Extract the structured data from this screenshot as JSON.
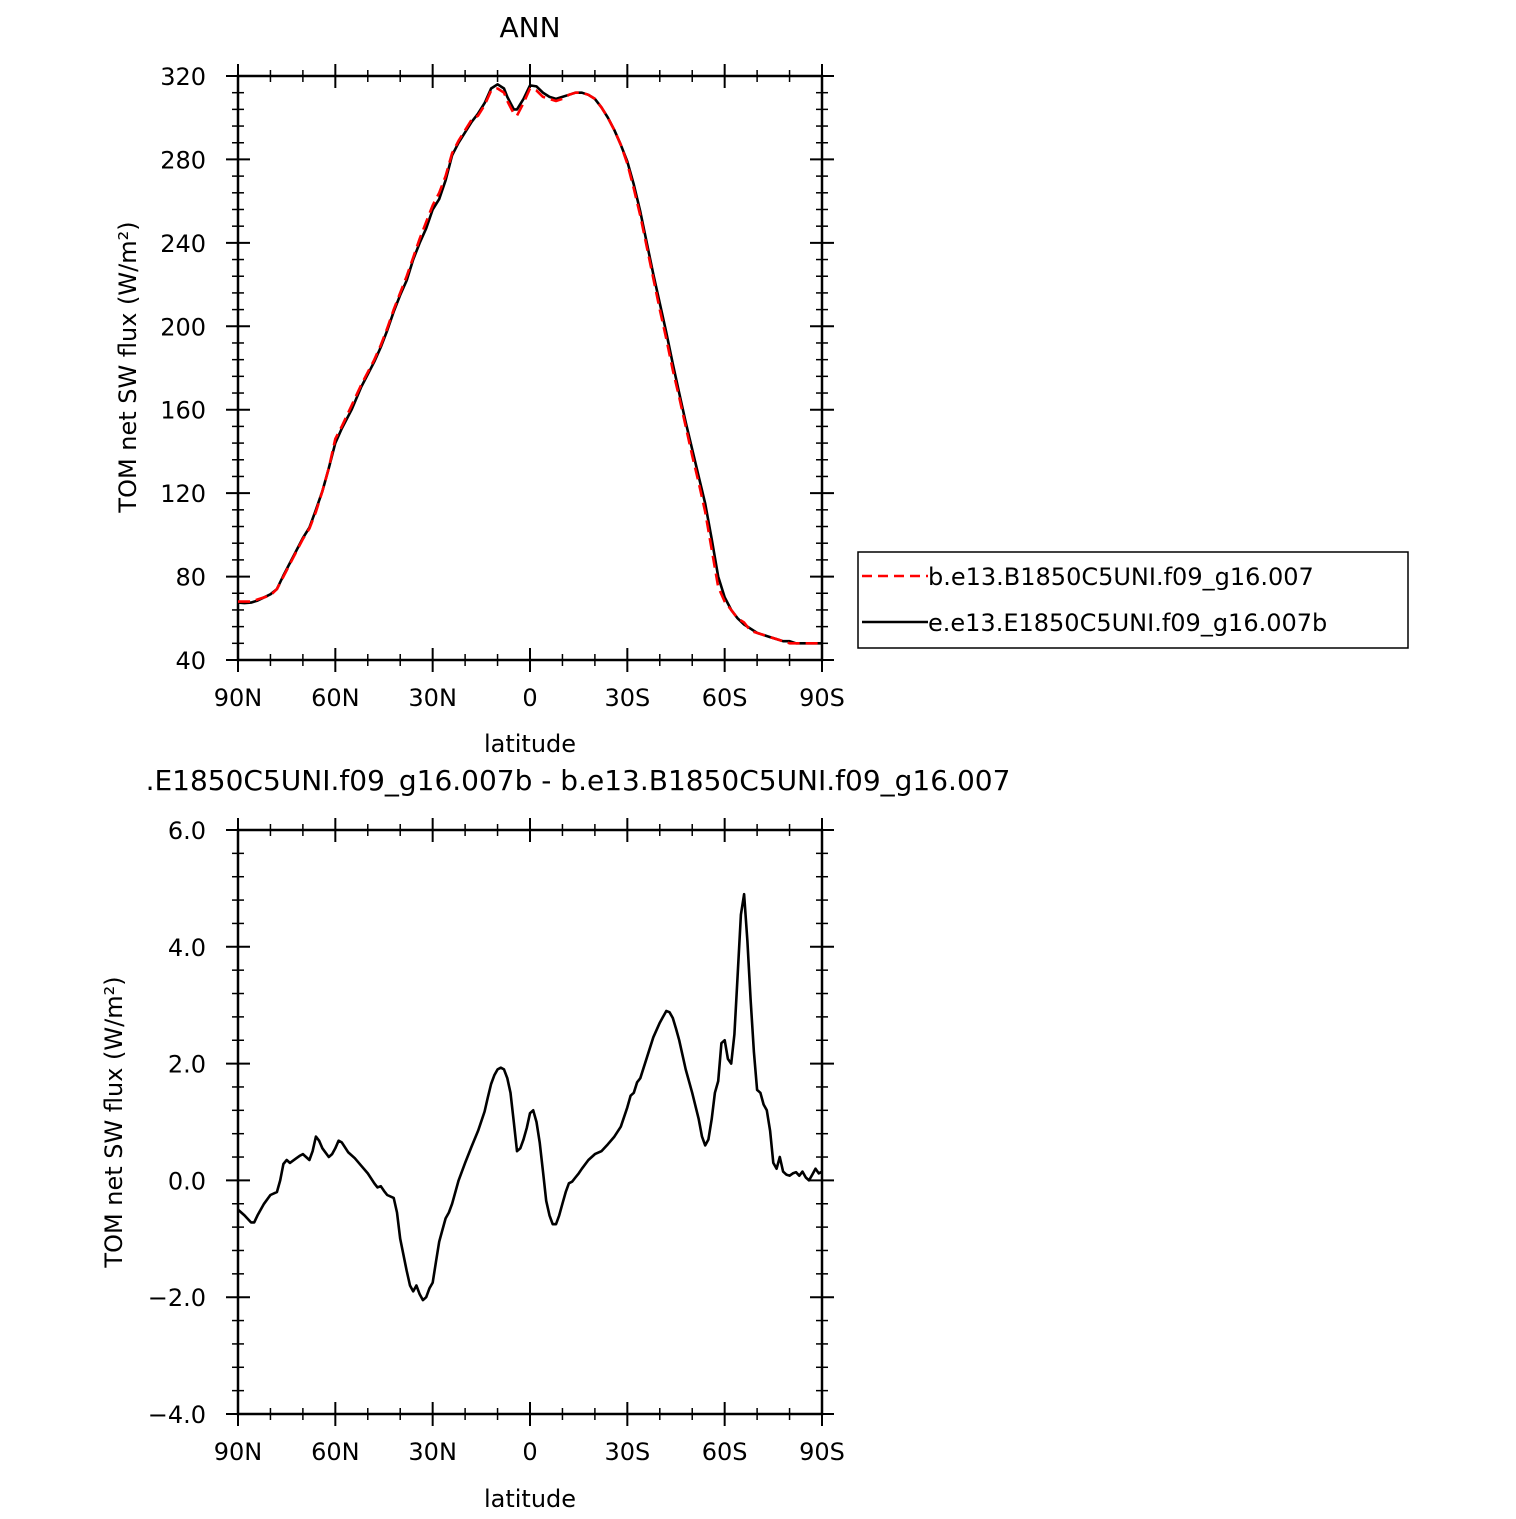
{
  "chart_data": [
    {
      "type": "line",
      "title": "ANN",
      "xlabel": "latitude",
      "ylabel": "TOM net SW flux (W/m²)",
      "xlim": [
        90,
        -90
      ],
      "ylim": [
        40,
        320
      ],
      "yticks": [
        "40",
        "80",
        "120",
        "160",
        "200",
        "240",
        "280",
        "320"
      ],
      "xticks": [
        "90N",
        "60N",
        "30N",
        "0",
        "30S",
        "60S",
        "90S"
      ],
      "legend_position": "right",
      "series": [
        {
          "name": "b.e13.B1850C5UNI.f09_g16.007",
          "color": "#ff0000",
          "dash": "dashed",
          "x": [
            90,
            88,
            86,
            84,
            82,
            80,
            78,
            76,
            74,
            72,
            70,
            68,
            66,
            64,
            62,
            60,
            58,
            55,
            52,
            50,
            48,
            46,
            44,
            42,
            40,
            38,
            36,
            34,
            32,
            30,
            28,
            26,
            24,
            22,
            20,
            18,
            16,
            14,
            12,
            10,
            8,
            7,
            6,
            5,
            4,
            2,
            0,
            -2,
            -4,
            -6,
            -8,
            -10,
            -12,
            -14,
            -16,
            -18,
            -20,
            -22,
            -24,
            -26,
            -28,
            -30,
            -32,
            -34,
            -36,
            -38,
            -40,
            -42,
            -44,
            -46,
            -48,
            -50,
            -52,
            -54,
            -56,
            -58,
            -60,
            -62,
            -64,
            -66,
            -68,
            -70,
            -72,
            -74,
            -76,
            -78,
            -80,
            -82,
            -84,
            -86,
            -88,
            -90
          ],
          "y": [
            68,
            68,
            68,
            69,
            70,
            71,
            74,
            80,
            86,
            92,
            98,
            103,
            111,
            121,
            132,
            146,
            152,
            162,
            172,
            178,
            184,
            191,
            199,
            208,
            216,
            224,
            233,
            242,
            250,
            258,
            264,
            272,
            283,
            289,
            294,
            299,
            301,
            306,
            313,
            314,
            312,
            308,
            305,
            302,
            301,
            307,
            314,
            313,
            310,
            309,
            308,
            309,
            311,
            312,
            312,
            311,
            309,
            305,
            300,
            294,
            287,
            278,
            266,
            253,
            238,
            223,
            208,
            194,
            179,
            166,
            152,
            138,
            125,
            111,
            93,
            75,
            68,
            64,
            60,
            58,
            54,
            53,
            52,
            51,
            50,
            49,
            48,
            48,
            48,
            48,
            48,
            48
          ]
        },
        {
          "name": "e.e13.E1850C5UNI.f09_g16.007b",
          "color": "#000000",
          "dash": "solid",
          "x": [
            90,
            88,
            86,
            84,
            82,
            80,
            78,
            76,
            74,
            72,
            70,
            68,
            66,
            64,
            62,
            60,
            58,
            55,
            52,
            50,
            48,
            46,
            44,
            42,
            40,
            38,
            36,
            34,
            32,
            30,
            28,
            26,
            24,
            22,
            20,
            18,
            16,
            14,
            12,
            10,
            8,
            7,
            6,
            5,
            4,
            2,
            0,
            -2,
            -4,
            -6,
            -8,
            -10,
            -12,
            -14,
            -16,
            -18,
            -20,
            -22,
            -24,
            -26,
            -28,
            -30,
            -32,
            -34,
            -36,
            -38,
            -40,
            -42,
            -44,
            -46,
            -48,
            -50,
            -52,
            -54,
            -56,
            -58,
            -60,
            -62,
            -64,
            -66,
            -68,
            -70,
            -72,
            -74,
            -76,
            -78,
            -80,
            -82,
            -84,
            -86,
            -88,
            -90
          ],
          "y": [
            67.5,
            67.3,
            67.5,
            68.5,
            70,
            71.5,
            74,
            80.5,
            86.5,
            92.5,
            98.5,
            103.5,
            112,
            121,
            132,
            144,
            151,
            160,
            171,
            177,
            183,
            190,
            198,
            207,
            215,
            222,
            232,
            240,
            247,
            256,
            261,
            270,
            282,
            288,
            293,
            298,
            302,
            307,
            314,
            316,
            314,
            310,
            307,
            304,
            304,
            309,
            315.5,
            315,
            312,
            310,
            309,
            310,
            311,
            312,
            312,
            311,
            309,
            305,
            300,
            294,
            287,
            279,
            268,
            255,
            240,
            225,
            211,
            197,
            182,
            168,
            154,
            141,
            128,
            115,
            98,
            80,
            70,
            64,
            60,
            57,
            55,
            53,
            52,
            51,
            50,
            49,
            49,
            48,
            48,
            48,
            48,
            48
          ]
        }
      ]
    },
    {
      "type": "line",
      "title": ".E1850C5UNI.f09_g16.007b - b.e13.B1850C5UNI.f09_g16.007",
      "xlabel": "latitude",
      "ylabel": "TOM net SW flux (W/m²)",
      "xlim": [
        90,
        -90
      ],
      "ylim": [
        -4.0,
        6.0
      ],
      "yticks": [
        "−4.0",
        "−2.0",
        "0.0",
        "2.0",
        "4.0",
        "6.0"
      ],
      "xticks": [
        "90N",
        "60N",
        "30N",
        "0",
        "30S",
        "60S",
        "90S"
      ],
      "series": [
        {
          "color": "#000000",
          "dash": "solid",
          "x": [
            90,
            88,
            86,
            85,
            84,
            82,
            80,
            78,
            77,
            76,
            75,
            74,
            72,
            71,
            70,
            68,
            67,
            66,
            65,
            64,
            62,
            61,
            60,
            59,
            58,
            56,
            54,
            52,
            50,
            48,
            47,
            46,
            45,
            44,
            42,
            41,
            40,
            38,
            37,
            36,
            35,
            34,
            33,
            32,
            31,
            30,
            29,
            28,
            27,
            26,
            25,
            24,
            22,
            20,
            18,
            16,
            14,
            13,
            12,
            11,
            10,
            9,
            8,
            7,
            6,
            5,
            4,
            3,
            2,
            1,
            0,
            -1,
            -2,
            -3,
            -4,
            -5,
            -6,
            -7,
            -8,
            -9,
            -10,
            -11,
            -12,
            -13,
            -14,
            -15,
            -16,
            -18,
            -20,
            -22,
            -24,
            -26,
            -28,
            -30,
            -31,
            -32,
            -33,
            -34,
            -36,
            -38,
            -40,
            -41,
            -42,
            -43,
            -44,
            -45,
            -46,
            -48,
            -50,
            -52,
            -53,
            -54,
            -55,
            -56,
            -57,
            -58,
            -59,
            -60,
            -61,
            -62,
            -63,
            -64,
            -65,
            -66,
            -67,
            -68,
            -69,
            -70,
            -71,
            -72,
            -73,
            -74,
            -75,
            -76,
            -77,
            -78,
            -79,
            -80,
            -81,
            -82,
            -83,
            -84,
            -85,
            -86,
            -87,
            -88,
            -89,
            -90
          ],
          "y": [
            -0.5,
            -0.6,
            -0.72,
            -0.72,
            -0.6,
            -0.4,
            -0.25,
            -0.2,
            0.0,
            0.28,
            0.35,
            0.3,
            0.38,
            0.42,
            0.45,
            0.35,
            0.5,
            0.75,
            0.68,
            0.55,
            0.4,
            0.45,
            0.55,
            0.68,
            0.65,
            0.48,
            0.38,
            0.25,
            0.12,
            -0.05,
            -0.12,
            -0.1,
            -0.18,
            -0.25,
            -0.3,
            -0.55,
            -1.0,
            -1.55,
            -1.8,
            -1.9,
            -1.8,
            -1.95,
            -2.05,
            -2.0,
            -1.85,
            -1.75,
            -1.4,
            -1.05,
            -0.85,
            -0.65,
            -0.55,
            -0.4,
            0.0,
            0.3,
            0.58,
            0.85,
            1.18,
            1.42,
            1.65,
            1.8,
            1.9,
            1.93,
            1.9,
            1.75,
            1.5,
            1.0,
            0.5,
            0.55,
            0.7,
            0.9,
            1.15,
            1.2,
            1.0,
            0.65,
            0.15,
            -0.35,
            -0.6,
            -0.75,
            -0.75,
            -0.6,
            -0.4,
            -0.2,
            -0.05,
            -0.02,
            0.05,
            0.12,
            0.2,
            0.35,
            0.45,
            0.5,
            0.62,
            0.75,
            0.92,
            1.25,
            1.45,
            1.5,
            1.68,
            1.75,
            2.1,
            2.45,
            2.7,
            2.8,
            2.9,
            2.88,
            2.78,
            2.6,
            2.4,
            1.9,
            1.5,
            1.05,
            0.75,
            0.6,
            0.7,
            1.05,
            1.5,
            1.7,
            2.35,
            2.4,
            2.08,
            2.0,
            2.5,
            3.5,
            4.55,
            4.9,
            4.1,
            3.1,
            2.2,
            1.55,
            1.5,
            1.3,
            1.2,
            0.85,
            0.3,
            0.2,
            0.4,
            0.15,
            0.1,
            0.08,
            0.12,
            0.14,
            0.08,
            0.15,
            0.05,
            0.0,
            0.1,
            0.2,
            0.12,
            0.15
          ]
        }
      ]
    }
  ]
}
